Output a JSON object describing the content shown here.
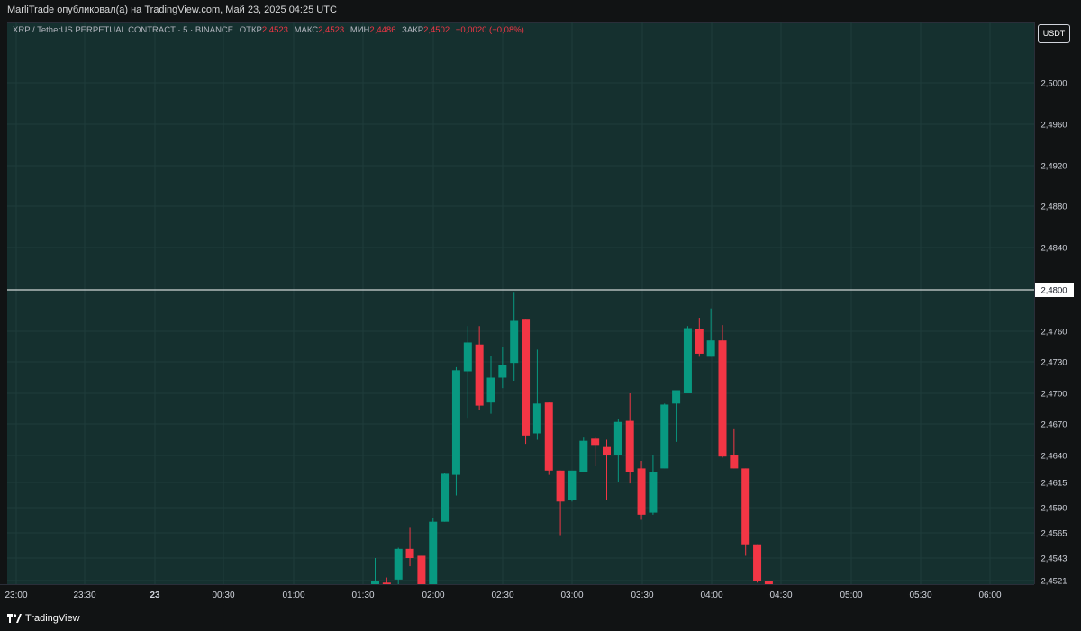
{
  "header": {
    "publisher_line": "MarliTrade опубликовал(а) на TradingView.com, Май 23, 2025 04:25 UTC"
  },
  "legend": {
    "symbol": "XRP / TetherUS PERPETUAL CONTRACT · 5 · BINANCE",
    "open_label": "ОТКР",
    "open_value": "2,4523",
    "high_label": "МАКС",
    "high_value": "2,4523",
    "low_label": "МИН",
    "low_value": "2,4486",
    "close_label": "ЗАКР",
    "close_value": "2,4502",
    "change_value": "−0,0020 (−0,08%)"
  },
  "currency_button": "USDT",
  "footer": {
    "brand": "TradingView",
    "logo_icon": "tradingview-logo-icon"
  },
  "colors": {
    "background": "#15302f",
    "bull": "#089981",
    "bear": "#f23645",
    "grid": "#1f3c3b",
    "hline": "#ffffff"
  },
  "chart_data": {
    "type": "candlestick",
    "title": "",
    "xlabel": "",
    "ylabel": "",
    "grid": true,
    "y_tick_labels": [
      "2,5000",
      "2,4960",
      "2,4920",
      "2,4880",
      "2,4840",
      "2,4800",
      "2,4760",
      "2,4730",
      "2,4700",
      "2,4670",
      "2,4640",
      "2,4615",
      "2,4590",
      "2,4565",
      "2,4543",
      "2,4521"
    ],
    "x_tick_labels": [
      "23:00",
      "23:30",
      "23",
      "00:30",
      "01:00",
      "01:30",
      "02:00",
      "02:30",
      "03:00",
      "03:30",
      "04:00",
      "04:30",
      "05:00",
      "05:30",
      "06:00"
    ],
    "horizontal_line": {
      "price": "2,4800"
    },
    "candles": [
      {
        "o": 2.4513,
        "h": 2.4543,
        "l": 2.4505,
        "c": 2.4521
      },
      {
        "o": 2.4519,
        "h": 2.4524,
        "l": 2.4514,
        "c": 2.4515
      },
      {
        "o": 2.4522,
        "h": 2.4552,
        "l": 2.4514,
        "c": 2.4551
      },
      {
        "o": 2.4551,
        "h": 2.457,
        "l": 2.4535,
        "c": 2.4543
      },
      {
        "o": 2.4545,
        "h": 2.4545,
        "l": 2.4505,
        "c": 2.451
      },
      {
        "o": 2.451,
        "h": 2.458,
        "l": 2.4505,
        "c": 2.4576
      },
      {
        "o": 2.4576,
        "h": 2.4624,
        "l": 2.4576,
        "c": 2.4623
      },
      {
        "o": 2.4622,
        "h": 2.4725,
        "l": 2.4602,
        "c": 2.4722
      },
      {
        "o": 2.4721,
        "h": 2.4765,
        "l": 2.4676,
        "c": 2.4749
      },
      {
        "o": 2.4747,
        "h": 2.4765,
        "l": 2.4684,
        "c": 2.4688
      },
      {
        "o": 2.4691,
        "h": 2.4736,
        "l": 2.468,
        "c": 2.4715
      },
      {
        "o": 2.4715,
        "h": 2.4745,
        "l": 2.4705,
        "c": 2.4727
      },
      {
        "o": 2.4729,
        "h": 2.4798,
        "l": 2.4712,
        "c": 2.477
      },
      {
        "o": 2.4772,
        "h": 2.4772,
        "l": 2.4651,
        "c": 2.4659
      },
      {
        "o": 2.4661,
        "h": 2.4742,
        "l": 2.4655,
        "c": 2.469
      },
      {
        "o": 2.4691,
        "h": 2.4691,
        "l": 2.4622,
        "c": 2.4626
      },
      {
        "o": 2.4626,
        "h": 2.4626,
        "l": 2.4563,
        "c": 2.4596
      },
      {
        "o": 2.4598,
        "h": 2.4625,
        "l": 2.4596,
        "c": 2.4626
      },
      {
        "o": 2.4625,
        "h": 2.4657,
        "l": 2.4625,
        "c": 2.4654
      },
      {
        "o": 2.4656,
        "h": 2.4658,
        "l": 2.463,
        "c": 2.465
      },
      {
        "o": 2.4648,
        "h": 2.4655,
        "l": 2.4598,
        "c": 2.464
      },
      {
        "o": 2.464,
        "h": 2.4675,
        "l": 2.4615,
        "c": 2.4672
      },
      {
        "o": 2.4673,
        "h": 2.47,
        "l": 2.4614,
        "c": 2.4625
      },
      {
        "o": 2.4628,
        "h": 2.4635,
        "l": 2.4578,
        "c": 2.4583
      },
      {
        "o": 2.4585,
        "h": 2.464,
        "l": 2.4583,
        "c": 2.4625
      },
      {
        "o": 2.4628,
        "h": 2.469,
        "l": 2.4628,
        "c": 2.4689
      },
      {
        "o": 2.469,
        "h": 2.4703,
        "l": 2.4653,
        "c": 2.4703
      },
      {
        "o": 2.47,
        "h": 2.4765,
        "l": 2.47,
        "c": 2.4763
      },
      {
        "o": 2.4762,
        "h": 2.4773,
        "l": 2.4735,
        "c": 2.4738
      },
      {
        "o": 2.4735,
        "h": 2.4782,
        "l": 2.4735,
        "c": 2.4751
      },
      {
        "o": 2.4751,
        "h": 2.4766,
        "l": 2.4638,
        "c": 2.4639
      },
      {
        "o": 2.464,
        "h": 2.4665,
        "l": 2.4628,
        "c": 2.4628
      },
      {
        "o": 2.4628,
        "h": 2.4628,
        "l": 2.4545,
        "c": 2.4555
      },
      {
        "o": 2.4555,
        "h": 2.4555,
        "l": 2.4519,
        "c": 2.4521
      },
      {
        "o": 2.4521,
        "h": 2.4521,
        "l": 2.451,
        "c": 2.4515
      }
    ]
  }
}
